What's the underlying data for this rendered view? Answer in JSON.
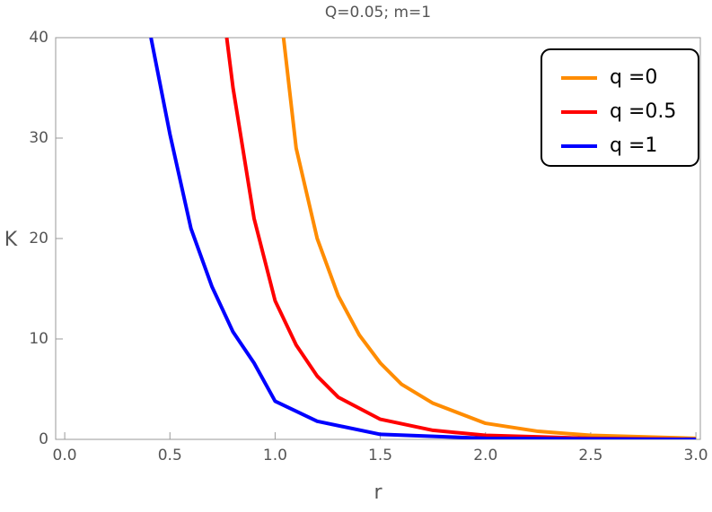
{
  "chart_data": {
    "type": "line",
    "title": "Q=0.05; m=1",
    "x_label": "r",
    "y_label": "K",
    "xlim": [
      -0.043,
      3.021
    ],
    "ylim": [
      0,
      40
    ],
    "xticks": [
      {
        "value": 0,
        "label": "0.0"
      },
      0.5,
      {
        "value": 1,
        "label": "1.0"
      },
      1.5,
      {
        "value": 2,
        "label": "2.0"
      },
      2.5,
      {
        "value": 3,
        "label": "3.0"
      }
    ],
    "yticks": [
      0,
      10,
      20,
      30,
      40
    ],
    "legend": "top-right",
    "series": [
      {
        "name": "q =0",
        "color": "#ff8c00",
        "x": [
          1.04,
          1.1,
          1.2,
          1.3,
          1.4,
          1.5,
          1.6,
          1.75,
          2.0,
          2.25,
          2.5,
          3.0
        ],
        "values": [
          40,
          29,
          20,
          14.3,
          10.4,
          7.6,
          5.5,
          3.6,
          1.6,
          0.8,
          0.4,
          0.1
        ]
      },
      {
        "name": "q =0.5",
        "color": "#ff0000",
        "x": [
          0.77,
          0.8,
          0.9,
          1.0,
          1.1,
          1.2,
          1.3,
          1.5,
          1.75,
          2.0,
          2.5,
          3.0
        ],
        "values": [
          40,
          35,
          22,
          13.8,
          9.4,
          6.3,
          4.2,
          2.0,
          0.9,
          0.4,
          0.1,
          0
        ]
      },
      {
        "name": "q =1",
        "color": "#0000ff",
        "x": [
          0.41,
          0.5,
          0.6,
          0.7,
          0.8,
          0.9,
          1.0,
          1.2,
          1.5,
          2.0,
          3.0
        ],
        "values": [
          40,
          30.4,
          21,
          15.2,
          10.7,
          7.6,
          3.8,
          1.8,
          0.5,
          0.1,
          0
        ]
      }
    ]
  }
}
